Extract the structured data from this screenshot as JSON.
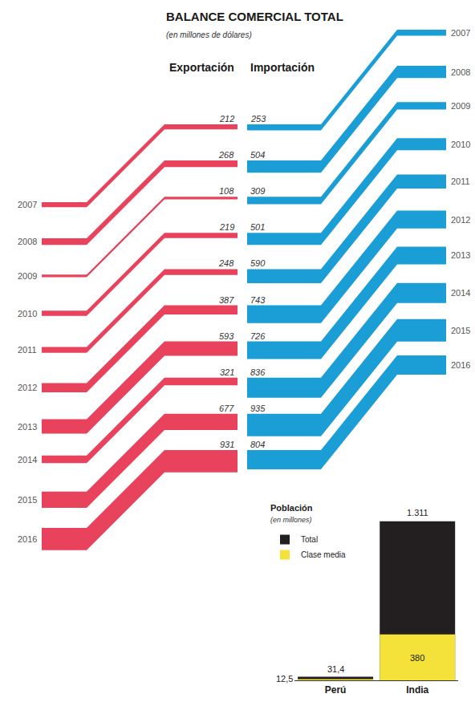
{
  "chart_data": [
    {
      "type": "flow",
      "title": "BALANCE COMERCIAL TOTAL",
      "subtitle": "(en millones de dólares)",
      "categories": [
        "2007",
        "2008",
        "2009",
        "2010",
        "2011",
        "2012",
        "2013",
        "2014",
        "2015",
        "2016"
      ],
      "series": [
        {
          "name": "Exportación",
          "color": "#e8425c",
          "values": [
            212,
            268,
            108,
            219,
            248,
            387,
            593,
            321,
            677,
            931
          ]
        },
        {
          "name": "Importación",
          "color": "#1b9dd6",
          "values": [
            253,
            504,
            309,
            501,
            590,
            743,
            726,
            836,
            935,
            804
          ]
        }
      ],
      "data_labels": true
    },
    {
      "type": "bar",
      "title": "Población",
      "subtitle": "(en millones)",
      "categories": [
        "Perú",
        "India"
      ],
      "series": [
        {
          "name": "Total",
          "color": "#231f20",
          "values": [
            31.4,
            1311
          ],
          "value_labels": [
            "31,4",
            "1.311"
          ]
        },
        {
          "name": "Clase media",
          "color": "#f4e23a",
          "values": [
            12.5,
            380
          ],
          "value_labels": [
            "12,5",
            "380"
          ]
        }
      ],
      "ylim": [
        0,
        1311
      ],
      "stacked": false,
      "data_labels": true,
      "legend": "top left",
      "tick_labels": "x"
    }
  ]
}
